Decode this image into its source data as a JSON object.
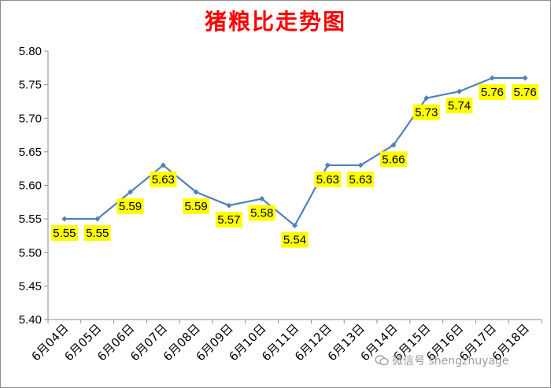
{
  "chart_data": {
    "type": "line",
    "title": "猪粮比走势图",
    "xlabel": "",
    "ylabel": "",
    "categories": [
      "6月04日",
      "6月05日",
      "6月06日",
      "6月07日",
      "6月08日",
      "6月09日",
      "6月10日",
      "6月11日",
      "6月12日",
      "6月13日",
      "6月14日",
      "6月15日",
      "6月16日",
      "6月17日",
      "6月18日"
    ],
    "values": [
      5.55,
      5.55,
      5.59,
      5.63,
      5.59,
      5.57,
      5.58,
      5.54,
      5.63,
      5.63,
      5.66,
      5.73,
      5.74,
      5.76,
      5.76
    ],
    "data_labels": [
      "5.55",
      "5.55",
      "5.59",
      "5.63",
      "5.59",
      "5.57",
      "5.58",
      "5.54",
      "5.63",
      "5.63",
      "5.66",
      "5.73",
      "5.74",
      "5.76",
      "5.76"
    ],
    "ylim": [
      5.4,
      5.8
    ],
    "yticks": [
      "5.40",
      "5.45",
      "5.50",
      "5.55",
      "5.60",
      "5.65",
      "5.70",
      "5.75",
      "5.80"
    ],
    "grid": false,
    "legend": "none",
    "colors": {
      "line": "#4f81bd",
      "title": "#ff0000",
      "label_bg": "#ffff00",
      "axis": "#8c8c8c"
    }
  },
  "watermark": {
    "text": "微信号 shengzhuyage",
    "icon": "wechat-icon"
  }
}
